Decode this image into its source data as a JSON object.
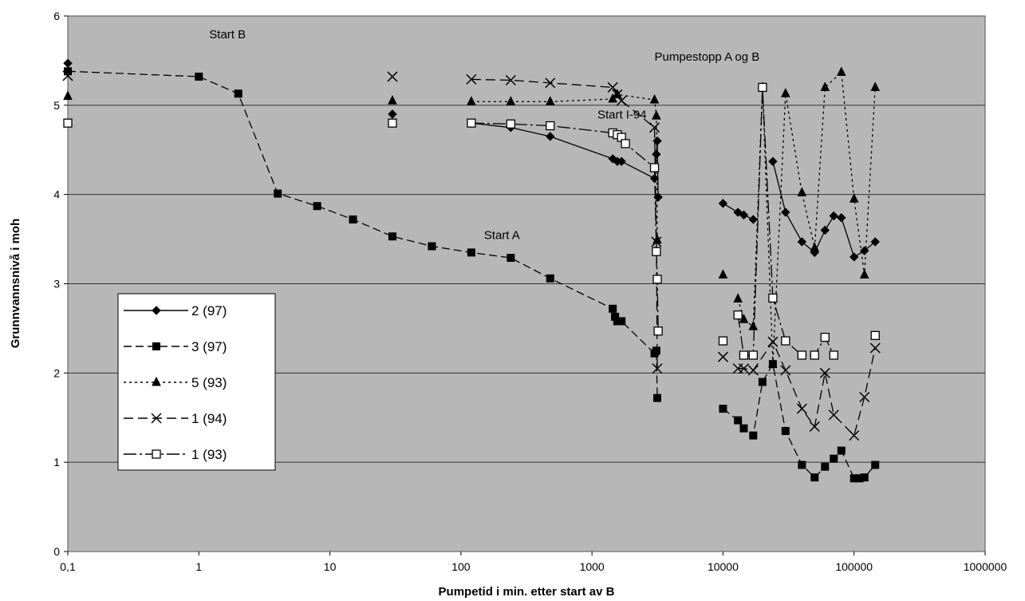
{
  "chart_data": {
    "type": "scatter",
    "xscale": "log",
    "xlabel": "Pumpetid i min. etter start av B",
    "ylabel": "Grunnvannsnivå i moh",
    "xlim": [
      0.1,
      1000000
    ],
    "ylim": [
      0,
      6
    ],
    "x_tick_labels": [
      "0,1",
      "1",
      "10",
      "100",
      "1000",
      "10000",
      "100000",
      "1000000"
    ],
    "y_tick_labels": [
      "0",
      "1",
      "2",
      "3",
      "4",
      "5",
      "6"
    ],
    "grid": "horizontal",
    "plot_background": "#b7b7b7",
    "legend_position": "lower-left",
    "annotations": [
      {
        "text": "Start B",
        "x": 1.2,
        "y": 5.75
      },
      {
        "text": "Pumpestopp A og B",
        "x": 3000,
        "y": 5.5
      },
      {
        "text": "Start I-94",
        "x": 1100,
        "y": 4.85
      },
      {
        "text": "Start A",
        "x": 150,
        "y": 3.5
      }
    ],
    "series": [
      {
        "name": "2 (97)",
        "marker": "diamond",
        "fill": "#000000",
        "dash": "solid",
        "segments": [
          [
            [
              0.1,
              5.47
            ]
          ],
          [
            [
              30,
              4.9
            ]
          ],
          [
            [
              120,
              4.8
            ],
            [
              240,
              4.75
            ],
            [
              480,
              4.65
            ],
            [
              1440,
              4.4
            ],
            [
              1560,
              4.37
            ],
            [
              1680,
              4.37
            ],
            [
              3000,
              4.18
            ],
            [
              3100,
              4.45
            ],
            [
              3150,
              4.6
            ],
            [
              3200,
              3.97
            ]
          ],
          [
            [
              10000,
              3.9
            ],
            [
              13000,
              3.8
            ],
            [
              14400,
              3.77
            ],
            [
              17000,
              3.72
            ]
          ],
          [
            [
              24000,
              4.37
            ],
            [
              30000,
              3.8
            ],
            [
              40000,
              3.47
            ],
            [
              50000,
              3.35
            ],
            [
              60000,
              3.6
            ],
            [
              70000,
              3.76
            ],
            [
              80000,
              3.74
            ],
            [
              100000,
              3.3
            ],
            [
              120000,
              3.37
            ],
            [
              145000,
              3.47
            ]
          ]
        ]
      },
      {
        "name": "3 (97)",
        "marker": "square",
        "fill": "#000000",
        "dash": "10,5",
        "segments": [
          [
            [
              0.1,
              5.38
            ],
            [
              1,
              5.32
            ],
            [
              2,
              5.13
            ],
            [
              4,
              4.01
            ],
            [
              8,
              3.87
            ],
            [
              15,
              3.72
            ],
            [
              30,
              3.53
            ],
            [
              60,
              3.42
            ],
            [
              120,
              3.35
            ],
            [
              240,
              3.29
            ],
            [
              480,
              3.06
            ],
            [
              1440,
              2.72
            ],
            [
              1500,
              2.63
            ],
            [
              1560,
              2.58
            ],
            [
              1680,
              2.58
            ],
            [
              3000,
              2.22
            ],
            [
              3100,
              2.25
            ],
            [
              3150,
              1.72
            ]
          ],
          [
            [
              10000,
              1.6
            ],
            [
              13000,
              1.47
            ],
            [
              14400,
              1.38
            ],
            [
              17000,
              1.3
            ],
            [
              20000,
              1.9
            ],
            [
              24000,
              2.1
            ],
            [
              30000,
              1.35
            ],
            [
              40000,
              0.97
            ],
            [
              50000,
              0.83
            ],
            [
              60000,
              0.95
            ],
            [
              70000,
              1.04
            ],
            [
              80000,
              1.13
            ],
            [
              100000,
              0.82
            ],
            [
              110000,
              0.82
            ],
            [
              120000,
              0.83
            ],
            [
              145000,
              0.97
            ]
          ]
        ]
      },
      {
        "name": "5 (93)",
        "marker": "triangle",
        "fill": "#000000",
        "dash": "3,4",
        "segments": [
          [
            [
              0.1,
              5.1
            ]
          ],
          [
            [
              30,
              5.05
            ]
          ],
          [
            [
              120,
              5.04
            ],
            [
              240,
              5.04
            ],
            [
              480,
              5.04
            ],
            [
              1440,
              5.07
            ],
            [
              1560,
              5.12
            ],
            [
              3000,
              5.06
            ],
            [
              3100,
              4.88
            ],
            [
              3150,
              3.49
            ]
          ],
          [
            [
              10000,
              3.1
            ]
          ],
          [
            [
              13000,
              2.83
            ],
            [
              14400,
              2.6
            ],
            [
              17000,
              2.52
            ],
            [
              20000,
              5.2
            ],
            [
              24000,
              2.1
            ],
            [
              30000,
              5.13
            ],
            [
              40000,
              4.02
            ],
            [
              50000,
              3.4
            ],
            [
              60000,
              5.2
            ],
            [
              80000,
              5.37
            ],
            [
              100000,
              3.95
            ],
            [
              120000,
              3.1
            ],
            [
              145000,
              5.2
            ]
          ]
        ]
      },
      {
        "name": "1 (94)",
        "marker": "x",
        "fill": "none",
        "dash": "12,6",
        "segments": [
          [
            [
              0.1,
              5.33
            ]
          ],
          [
            [
              30,
              5.32
            ]
          ],
          [
            [
              120,
              5.29
            ],
            [
              240,
              5.28
            ],
            [
              480,
              5.25
            ],
            [
              1440,
              5.2
            ],
            [
              1560,
              5.12
            ],
            [
              1680,
              5.05
            ],
            [
              3000,
              4.75
            ],
            [
              3100,
              3.47
            ],
            [
              3150,
              2.05
            ]
          ],
          [
            [
              10000,
              2.18
            ]
          ],
          [
            [
              13000,
              2.05
            ],
            [
              14400,
              2.05
            ],
            [
              17000,
              2.03
            ],
            [
              24000,
              2.35
            ],
            [
              30000,
              2.03
            ],
            [
              40000,
              1.6
            ],
            [
              50000,
              1.4
            ],
            [
              60000,
              2.0
            ],
            [
              70000,
              1.53
            ],
            [
              100000,
              1.3
            ],
            [
              120000,
              1.73
            ],
            [
              145000,
              2.28
            ]
          ]
        ]
      },
      {
        "name": "1 (93)",
        "marker": "open-square",
        "fill": "#ffffff",
        "dash": "16,4,3,4",
        "segments": [
          [
            [
              0.1,
              4.8
            ]
          ],
          [
            [
              30,
              4.8
            ]
          ],
          [
            [
              120,
              4.8
            ],
            [
              240,
              4.79
            ],
            [
              480,
              4.77
            ],
            [
              1440,
              4.69
            ],
            [
              1560,
              4.67
            ],
            [
              1680,
              4.64
            ],
            [
              1800,
              4.57
            ],
            [
              3000,
              4.3
            ],
            [
              3100,
              3.36
            ],
            [
              3150,
              3.05
            ],
            [
              3200,
              2.47
            ]
          ],
          [
            [
              10000,
              2.36
            ]
          ],
          [
            [
              13000,
              2.65
            ],
            [
              14400,
              2.2
            ],
            [
              17000,
              2.2
            ],
            [
              20000,
              5.2
            ],
            [
              24000,
              2.84
            ],
            [
              30000,
              2.36
            ],
            [
              40000,
              2.2
            ],
            [
              50000,
              2.2
            ],
            [
              60000,
              2.4
            ],
            [
              70000,
              2.2
            ]
          ],
          [
            [
              145000,
              2.42
            ]
          ]
        ]
      }
    ]
  }
}
